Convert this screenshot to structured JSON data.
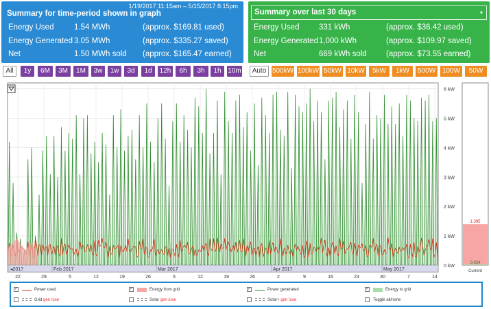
{
  "summary_period": {
    "date_range": "1/19/2017 11:15am – 5/15/2017 8:15pm",
    "title": "Summary for time-period shown in graph",
    "rows": [
      {
        "label": "Energy Used",
        "value": "1.54 MWh",
        "note": "(approx. $169.81 used)"
      },
      {
        "label": "Energy Generated",
        "value": "3.05 MWh",
        "note": "(approx. $335.27 saved)"
      },
      {
        "label": "Net",
        "value": "1.50 MWh sold",
        "note": "(approx. $165.47 earned)"
      }
    ]
  },
  "summary_30": {
    "title": "Summary over last 30 days",
    "dropdown_arrow": "▾",
    "rows": [
      {
        "label": "Energy Used",
        "value": "331 kWh",
        "note": "(approx. $36.42 used)"
      },
      {
        "label": "Energy Generated",
        "value": "1,000 kWh",
        "note": "(approx. $109.97 saved)"
      },
      {
        "label": "Net",
        "value": "669 kWh sold",
        "note": "(approx. $73.55 earned)"
      }
    ]
  },
  "time_buttons": [
    "All",
    "1y",
    "6M",
    "3M",
    "1M",
    "3w",
    "1w",
    "3d",
    "1d",
    "12h",
    "6h",
    "3h",
    "1h",
    "10m"
  ],
  "scale_buttons": [
    "Auto",
    "500kW",
    "100kW",
    "50kW",
    "10kW",
    "5kW",
    "1kW",
    "500W",
    "100W",
    "50W"
  ],
  "colors": {
    "purple": "#7b3fa0",
    "orange": "#ef8d22",
    "blue": "#2a8bd4",
    "green": "#37b34a",
    "power_used": "#cc3311",
    "power_generated": "#2e8b2e",
    "grid_fill": "#f7a5a5",
    "grid_to": "#a8dca8"
  },
  "chart_data": {
    "type": "line",
    "y_ticks": [
      "0 kW",
      "1 kW",
      "2 kW",
      "3 kW",
      "4 kW",
      "5 kW",
      "6 kW"
    ],
    "ylim": [
      0,
      6.2
    ],
    "month_labels": [
      "◂2017",
      "Feb 2017",
      "Mar 2017",
      "Apr 2017",
      "May 2017"
    ],
    "x_tick_labels": [
      "22",
      "29",
      "5",
      "12",
      "19",
      "26",
      "5",
      "12",
      "19",
      "26",
      "2",
      "9",
      "16",
      "23",
      "30",
      "7",
      "14"
    ],
    "current_label": "Current",
    "current_used": "1.395",
    "current_generated": "0.024",
    "current_used_kw": 1.395,
    "current_generated_kw": 0.024,
    "generated_daily_peaks_kw": [
      4.2,
      2.8,
      1.1,
      0.9,
      0.5,
      3.6,
      4.0,
      1.0,
      2.4,
      3.9,
      4.4,
      3.1,
      4.4,
      3.0,
      4.7,
      3.9,
      4.5,
      4.3,
      5.1,
      3.1,
      5.0,
      5.1,
      3.8,
      4.2,
      3.5,
      4.5,
      4.1,
      2.4,
      5.1,
      4.0,
      5.3,
      3.9,
      4.4,
      4.6,
      3.6,
      5.1,
      4.0,
      5.5,
      4.2,
      3.5,
      5.0,
      5.5,
      4.3,
      2.7,
      4.9,
      5.5,
      4.2,
      5.1,
      4.6,
      4.0,
      5.7,
      5.4,
      4.5,
      6.0,
      3.8,
      4.5,
      5.6,
      3.1,
      5.9,
      4.9,
      4.5,
      5.6,
      5.8,
      4.7,
      5.2,
      3.9,
      5.5,
      3.4,
      5.7,
      5.1,
      4.5,
      5.8,
      5.9,
      4.6,
      4.4,
      5.9,
      3.3,
      5.8,
      5.4,
      5.2,
      5.5,
      6.0,
      4.9,
      5.6,
      5.2,
      3.6,
      5.6,
      5.7,
      5.9,
      4.7,
      5.3,
      5.6,
      4.3,
      5.8,
      5.2,
      2.8,
      4.8,
      5.9,
      4.3,
      5.1,
      5.0,
      5.8,
      4.8,
      5.4,
      4.8,
      5.5,
      4.4,
      5.8,
      5.6,
      5.0,
      4.9,
      5.7,
      5.6,
      5.8,
      4.9,
      5.0
    ]
  },
  "legend": [
    {
      "label": "Power used",
      "suffix": "",
      "checked": true,
      "style": "line-red"
    },
    {
      "label": "Energy from grid",
      "suffix": "",
      "checked": true,
      "style": "fill-red"
    },
    {
      "label": "Power generated",
      "suffix": "",
      "checked": true,
      "style": "line-green"
    },
    {
      "label": "Energy to grid",
      "suffix": "",
      "checked": true,
      "style": "fill-green"
    },
    {
      "label": "Grid ",
      "suffix": "gen /use",
      "checked": false,
      "style": "dash"
    },
    {
      "label": "Solar ",
      "suffix": "gen /use",
      "checked": false,
      "style": "dash"
    },
    {
      "label": "Solar+ ",
      "suffix": "gen /use",
      "checked": false,
      "style": "dash"
    },
    {
      "label": "Toggle all/none",
      "suffix": "",
      "checked": false,
      "style": "none"
    }
  ]
}
